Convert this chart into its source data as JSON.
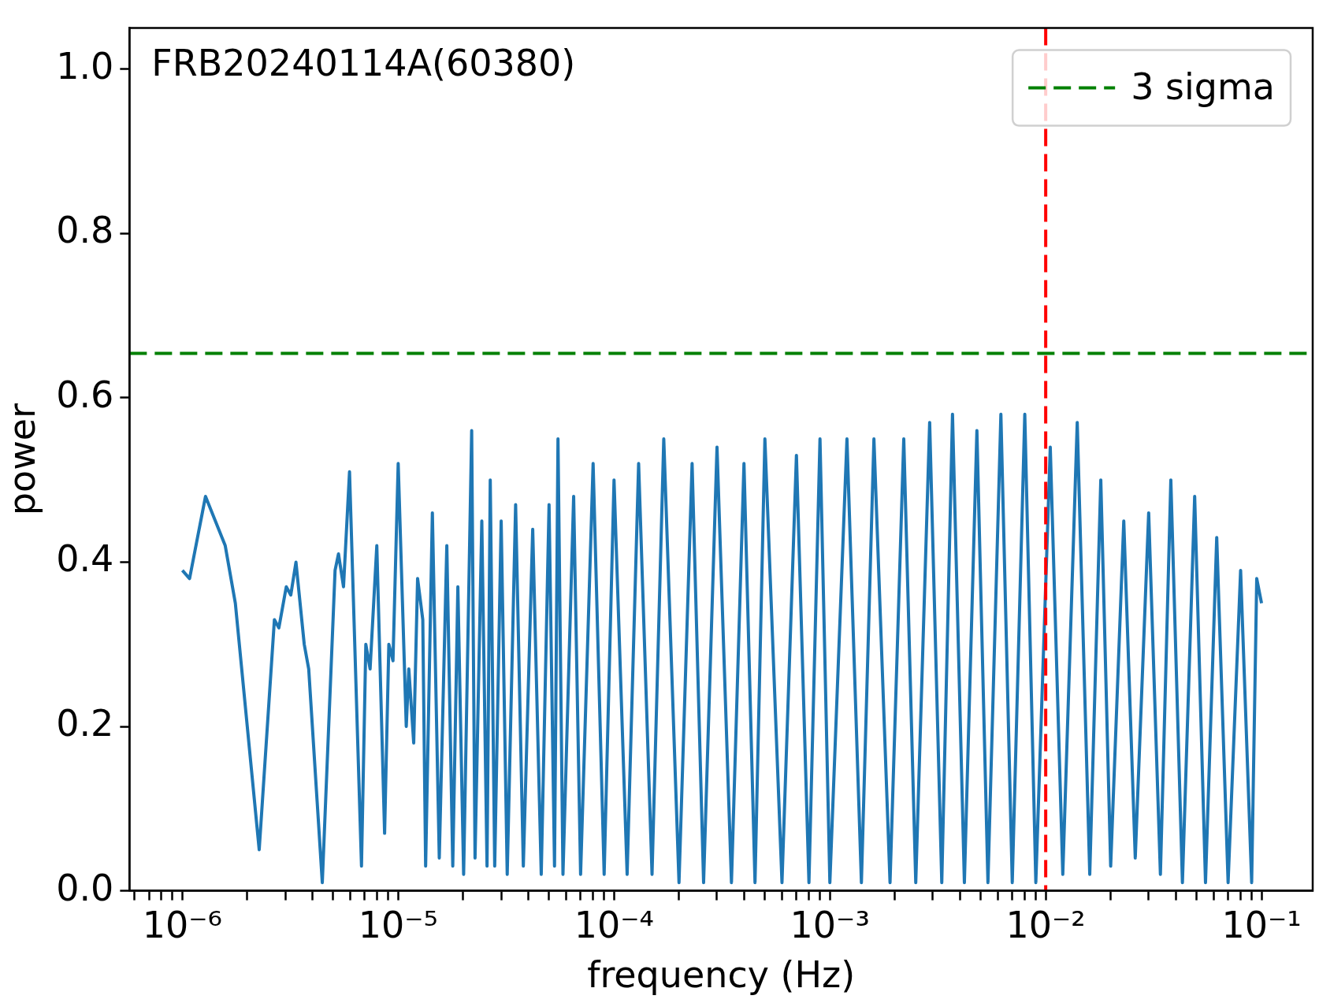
{
  "chart_data": {
    "type": "line",
    "xlabel": "frequency (Hz)",
    "ylabel": "power",
    "annotations": [
      "FRB20240114A(60380)"
    ],
    "log": "x",
    "legend": "top right",
    "xlim": [
      5.69e-07,
      0.1726
    ],
    "ylim": [
      0,
      1.05
    ],
    "xticks": [
      {
        "value": 6e-07,
        "label": null
      },
      {
        "value": 7e-07,
        "label": null
      },
      {
        "value": 8e-07,
        "label": null
      },
      {
        "value": 9e-07,
        "label": null
      },
      {
        "value": 1e-06,
        "label": "10⁻⁶"
      },
      {
        "value": 2e-06,
        "label": null
      },
      {
        "value": 3e-06,
        "label": null
      },
      {
        "value": 4e-06,
        "label": null
      },
      {
        "value": 5e-06,
        "label": null
      },
      {
        "value": 6e-06,
        "label": null
      },
      {
        "value": 7e-06,
        "label": null
      },
      {
        "value": 8e-06,
        "label": null
      },
      {
        "value": 9e-06,
        "label": null
      },
      {
        "value": 1e-05,
        "label": "10⁻⁵"
      },
      {
        "value": 2e-05,
        "label": null
      },
      {
        "value": 3e-05,
        "label": null
      },
      {
        "value": 4e-05,
        "label": null
      },
      {
        "value": 5e-05,
        "label": null
      },
      {
        "value": 6e-05,
        "label": null
      },
      {
        "value": 7e-05,
        "label": null
      },
      {
        "value": 8e-05,
        "label": null
      },
      {
        "value": 9e-05,
        "label": null
      },
      {
        "value": 0.0001,
        "label": "10⁻⁴"
      },
      {
        "value": 0.0002,
        "label": null
      },
      {
        "value": 0.0003,
        "label": null
      },
      {
        "value": 0.0004,
        "label": null
      },
      {
        "value": 0.0005,
        "label": null
      },
      {
        "value": 0.0006,
        "label": null
      },
      {
        "value": 0.0007,
        "label": null
      },
      {
        "value": 0.0008,
        "label": null
      },
      {
        "value": 0.0009,
        "label": null
      },
      {
        "value": 0.001,
        "label": "10⁻³"
      },
      {
        "value": 0.002,
        "label": null
      },
      {
        "value": 0.003,
        "label": null
      },
      {
        "value": 0.004,
        "label": null
      },
      {
        "value": 0.005,
        "label": null
      },
      {
        "value": 0.006,
        "label": null
      },
      {
        "value": 0.007,
        "label": null
      },
      {
        "value": 0.008,
        "label": null
      },
      {
        "value": 0.009,
        "label": null
      },
      {
        "value": 0.01,
        "label": "10⁻²"
      },
      {
        "value": 0.02,
        "label": null
      },
      {
        "value": 0.03,
        "label": null
      },
      {
        "value": 0.04,
        "label": null
      },
      {
        "value": 0.05,
        "label": null
      },
      {
        "value": 0.06,
        "label": null
      },
      {
        "value": 0.07,
        "label": null
      },
      {
        "value": 0.08,
        "label": null
      },
      {
        "value": 0.09,
        "label": null
      },
      {
        "value": 0.1,
        "label": "10⁻¹"
      }
    ],
    "yticks": [
      {
        "value": 0,
        "label": "0.0"
      },
      0.2,
      0.4,
      0.6,
      0.8,
      {
        "value": 1,
        "label": "1.0"
      }
    ],
    "ref_lines": [
      {
        "axis": "y",
        "value": 0.654,
        "label": "3 sigma",
        "color": "#008000",
        "line_style": "dashed"
      },
      {
        "axis": "x",
        "value": 0.01,
        "color": "#ff0000",
        "line_style": "dashed"
      }
    ],
    "series": [
      {
        "color": "#1f77b4",
        "line_style": "solid",
        "x": [
          1e-06,
          1.08e-06,
          1.28e-06,
          1.58e-06,
          1.76e-06,
          2.27e-06,
          2.67e-06,
          2.8e-06,
          3.03e-06,
          3.18e-06,
          3.36e-06,
          3.67e-06,
          3.85e-06,
          4.45e-06,
          5.1e-06,
          5.29e-06,
          5.58e-06,
          5.95e-06,
          6.76e-06,
          7.08e-06,
          7.41e-06,
          7.96e-06,
          8.65e-06,
          9.05e-06,
          9.46e-06,
          1e-05,
          1.09e-05,
          1.12e-05,
          1.18e-05,
          1.23e-05,
          1.3e-05,
          1.34e-05,
          1.44e-05,
          1.55e-05,
          1.68e-05,
          1.79e-05,
          1.89e-05,
          2.01e-05,
          2.19e-05,
          2.27e-05,
          2.44e-05,
          2.58e-05,
          2.67e-05,
          2.8e-05,
          3e-05,
          3.2e-05,
          3.5e-05,
          3.8e-05,
          4.2e-05,
          4.6e-05,
          5e-05,
          5.3e-05,
          5.5e-05,
          5.8e-05,
          6.5e-05,
          7e-05,
          8e-05,
          9e-05,
          0.0001,
          0.000115,
          0.00013,
          0.00015,
          0.00017,
          0.0002,
          0.00023,
          0.00026,
          0.0003,
          0.00035,
          0.0004,
          0.00045,
          0.0005,
          0.0006,
          0.0007,
          0.0008,
          0.0009,
          0.001,
          0.0012,
          0.0014,
          0.0016,
          0.0019,
          0.0022,
          0.0025,
          0.0029,
          0.0033,
          0.0037,
          0.0042,
          0.0048,
          0.0054,
          0.0062,
          0.007,
          0.008,
          0.009,
          0.0105,
          0.012,
          0.014,
          0.016,
          0.018,
          0.02,
          0.023,
          0.026,
          0.03,
          0.034,
          0.038,
          0.043,
          0.049,
          0.055,
          0.062,
          0.07,
          0.08,
          0.09,
          0.095,
          0.1
        ],
        "values": [
          0.39,
          0.38,
          0.48,
          0.42,
          0.35,
          0.05,
          0.33,
          0.32,
          0.37,
          0.36,
          0.4,
          0.3,
          0.27,
          0.01,
          0.39,
          0.41,
          0.37,
          0.51,
          0.03,
          0.3,
          0.27,
          0.42,
          0.07,
          0.3,
          0.28,
          0.52,
          0.2,
          0.27,
          0.18,
          0.38,
          0.33,
          0.03,
          0.46,
          0.04,
          0.42,
          0.03,
          0.37,
          0.02,
          0.56,
          0.04,
          0.45,
          0.03,
          0.5,
          0.03,
          0.45,
          0.02,
          0.47,
          0.03,
          0.44,
          0.02,
          0.47,
          0.03,
          0.55,
          0.02,
          0.48,
          0.02,
          0.52,
          0.02,
          0.5,
          0.02,
          0.52,
          0.02,
          0.55,
          0.01,
          0.52,
          0.01,
          0.54,
          0.01,
          0.52,
          0.01,
          0.55,
          0.01,
          0.53,
          0.01,
          0.55,
          0.01,
          0.55,
          0.01,
          0.55,
          0.01,
          0.55,
          0.01,
          0.57,
          0.01,
          0.58,
          0.01,
          0.56,
          0.01,
          0.58,
          0.01,
          0.58,
          0.01,
          0.54,
          0.02,
          0.57,
          0.02,
          0.5,
          0.03,
          0.45,
          0.04,
          0.46,
          0.02,
          0.5,
          0.01,
          0.48,
          0.01,
          0.43,
          0.01,
          0.39,
          0.01,
          0.38,
          0.35
        ]
      }
    ]
  }
}
